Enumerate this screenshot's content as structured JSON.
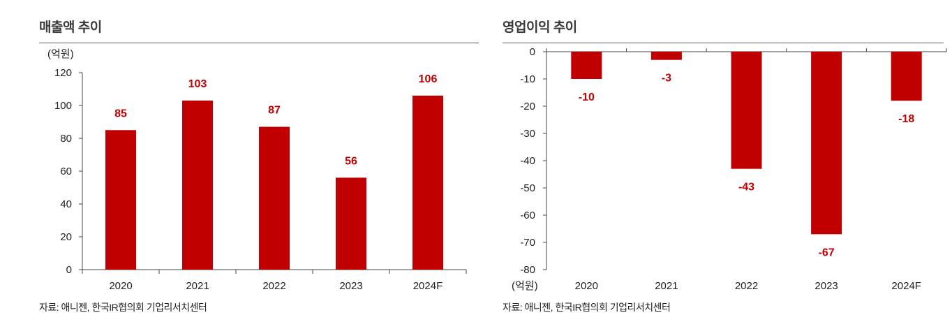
{
  "bar_color": "#c00000",
  "chart_data": [
    {
      "type": "bar",
      "title": "매출액 추이",
      "unit_label": "(억원)",
      "categories": [
        "2020",
        "2021",
        "2022",
        "2023",
        "2024F"
      ],
      "values": [
        85,
        103,
        87,
        56,
        106
      ],
      "ylim": [
        0,
        120
      ],
      "yticks": [
        0,
        20,
        40,
        60,
        80,
        100,
        120
      ],
      "source": "자료: 애니젠, 한국IR협의회 기업리서치센터"
    },
    {
      "type": "bar",
      "title": "영업이익 추이",
      "unit_label": "(억원)",
      "categories": [
        "2020",
        "2021",
        "2022",
        "2023",
        "2024F"
      ],
      "values": [
        -10,
        -3,
        -43,
        -67,
        -18
      ],
      "ylim": [
        -80,
        0
      ],
      "yticks": [
        0,
        -10,
        -20,
        -30,
        -40,
        -50,
        -60,
        -70,
        -80
      ],
      "source": "자료: 애니젠, 한국IR협의회 기업리서치센터"
    }
  ]
}
